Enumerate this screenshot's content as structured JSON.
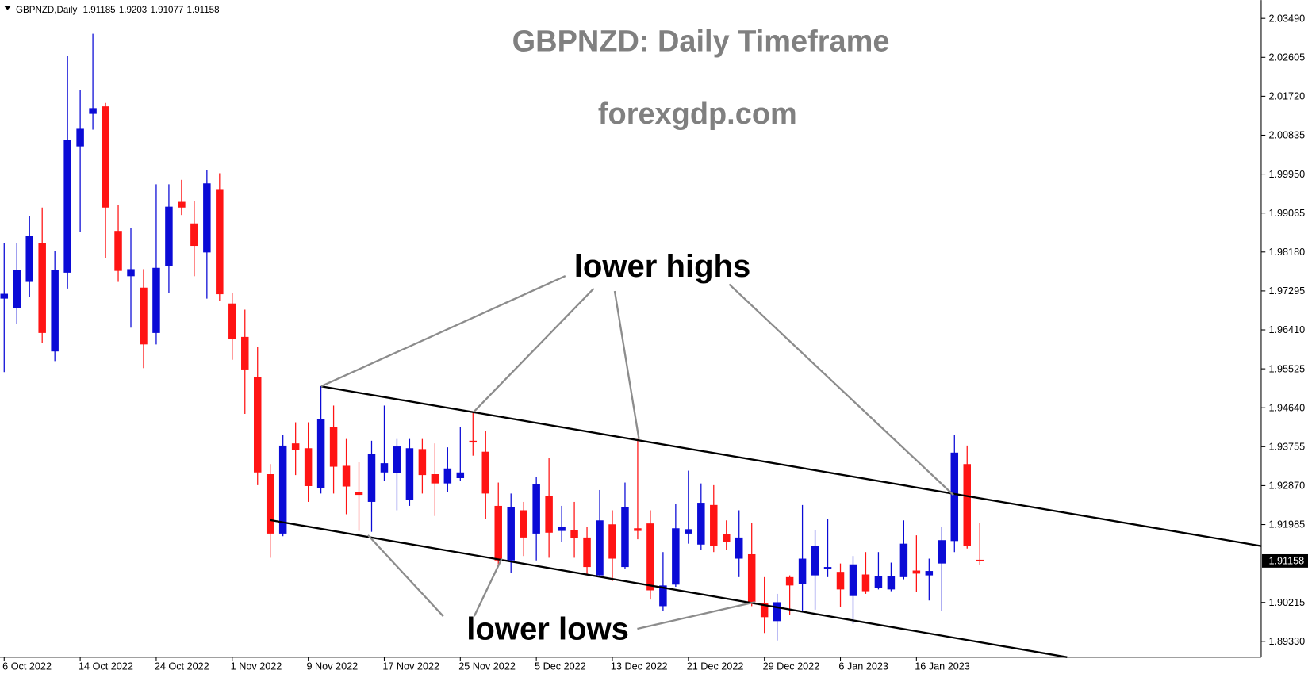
{
  "chart_data": {
    "type": "candlestick",
    "symbol": "GBPNZD,Daily",
    "title": "GBPNZD: Daily Timeframe",
    "subtitle": "forexgdp.com",
    "annotations": [
      "lower highs",
      "lower lows"
    ],
    "categories": [
      "6 Oct 2022",
      null,
      null,
      null,
      null,
      null,
      "14 Oct 2022",
      null,
      null,
      null,
      null,
      null,
      "24 Oct 2022",
      null,
      null,
      null,
      null,
      null,
      "1 Nov 2022",
      null,
      null,
      null,
      null,
      null,
      "9 Nov 2022",
      null,
      null,
      null,
      null,
      null,
      "17 Nov 2022",
      null,
      null,
      null,
      null,
      null,
      "25 Nov 2022",
      null,
      null,
      null,
      null,
      null,
      "5 Dec 2022",
      null,
      null,
      null,
      null,
      null,
      "13 Dec 2022",
      null,
      null,
      null,
      null,
      null,
      "21 Dec 2022",
      null,
      null,
      null,
      null,
      null,
      "29 Dec 2022",
      null,
      null,
      null,
      null,
      null,
      "6 Jan 2023",
      null,
      null,
      null,
      null,
      null,
      "16 Jan 2023",
      null,
      null,
      null,
      null,
      null
    ],
    "open": [
      1.9712,
      1.9691,
      1.975,
      1.9839,
      1.9592,
      1.9771,
      2.0058,
      2.0132,
      2.0149,
      1.9866,
      1.9763,
      1.9737,
      1.9634,
      1.9786,
      1.9932,
      1.9883,
      1.9817,
      1.9961,
      1.9701,
      1.9625,
      1.9533,
      1.9313,
      1.9178,
      1.9383,
      1.9372,
      1.9281,
      1.9421,
      1.9332,
      1.9273,
      1.925,
      1.9317,
      1.9315,
      1.9254,
      1.937,
      1.9313,
      1.9292,
      1.9304,
      1.9389,
      1.9364,
      1.9241,
      1.9117,
      1.9231,
      1.9178,
      1.9264,
      1.9184,
      1.9186,
      1.9169,
      1.9083,
      1.9199,
      1.9102,
      1.919,
      1.9201,
      1.9013,
      1.9062,
      1.9178,
      1.9153,
      1.9243,
      1.9176,
      1.9121,
      1.9131,
      1.902,
      1.8979,
      1.9079,
      1.9064,
      1.9083,
      1.9098,
      1.9091,
      1.9036,
      1.9085,
      1.9055,
      1.9051,
      1.9079,
      1.9094,
      1.9083,
      1.911,
      1.9161,
      1.9336,
      1.91185
    ],
    "high": [
      1.9839,
      1.9839,
      1.99,
      1.9919,
      1.982,
      2.0263,
      2.0187,
      2.0314,
      2.0157,
      1.9925,
      1.9872,
      1.9779,
      1.9972,
      1.9972,
      1.9982,
      1.9934,
      2.0005,
      1.9997,
      1.9725,
      1.9687,
      1.9602,
      1.9336,
      1.9402,
      1.9431,
      1.9431,
      1.9513,
      1.9469,
      1.9393,
      1.934,
      1.9389,
      1.9469,
      1.9393,
      1.9393,
      1.9393,
      1.9383,
      1.9374,
      1.9421,
      1.9454,
      1.9412,
      1.9294,
      1.9269,
      1.925,
      1.9307,
      1.9349,
      1.9241,
      1.925,
      1.9193,
      1.9277,
      1.9231,
      1.9294,
      1.9393,
      1.9231,
      1.9136,
      1.9245,
      1.9321,
      1.9292,
      1.9288,
      1.9208,
      1.9231,
      1.9203,
      1.9079,
      1.9041,
      1.9083,
      1.9243,
      1.9186,
      1.9212,
      1.911,
      1.9127,
      1.9136,
      1.9136,
      1.9112,
      1.9208,
      1.9174,
      1.9121,
      1.9193,
      1.9402,
      1.9378,
      1.9203
    ],
    "low": [
      1.9545,
      1.9655,
      1.9716,
      1.9611,
      1.957,
      1.9735,
      1.9864,
      2.0096,
      1.9805,
      1.975,
      1.9646,
      1.9554,
      1.9608,
      1.9725,
      1.9902,
      1.9763,
      1.9712,
      1.9706,
      1.9573,
      1.945,
      1.9288,
      1.9123,
      1.9172,
      1.9311,
      1.925,
      1.9269,
      1.9269,
      1.9222,
      1.9184,
      1.9182,
      1.9298,
      1.9231,
      1.9241,
      1.9269,
      1.9218,
      1.9273,
      1.9298,
      1.9355,
      1.9212,
      1.9108,
      1.9089,
      1.9127,
      1.9117,
      1.9123,
      1.9159,
      1.9123,
      1.9083,
      1.9079,
      1.907,
      1.9098,
      1.9165,
      1.9028,
      1.9003,
      1.9057,
      1.9155,
      1.914,
      1.9136,
      1.914,
      1.9079,
      1.9013,
      1.8952,
      1.8935,
      1.8994,
      1.9003,
      1.9005,
      1.9079,
      1.9011,
      1.8973,
      1.9041,
      1.9051,
      1.9047,
      1.9074,
      1.9045,
      1.9026,
      1.9003,
      1.9136,
      1.9144,
      1.91077
    ],
    "close": [
      1.9723,
      1.9777,
      1.9855,
      1.9634,
      1.9777,
      2.0073,
      2.0098,
      2.0145,
      1.9919,
      1.9775,
      1.9779,
      1.9608,
      1.9782,
      1.9921,
      1.9919,
      1.9832,
      1.9974,
      1.9722,
      1.9621,
      1.9551,
      1.9317,
      1.9178,
      1.9378,
      1.9368,
      1.9286,
      1.9438,
      1.933,
      1.9285,
      1.9266,
      1.9359,
      1.9338,
      1.9376,
      1.9372,
      1.9311,
      1.9292,
      1.9326,
      1.9317,
      1.9385,
      1.9269,
      1.9117,
      1.9239,
      1.9169,
      1.929,
      1.918,
      1.9193,
      1.9167,
      1.9102,
      1.9208,
      1.9121,
      1.9239,
      1.9184,
      1.9049,
      1.906,
      1.919,
      1.9188,
      1.9248,
      1.915,
      1.9159,
      1.9169,
      1.9022,
      1.8988,
      1.9022,
      1.906,
      1.9121,
      1.915,
      1.9102,
      1.9051,
      1.9108,
      1.9047,
      1.9081,
      1.9081,
      1.9155,
      1.9087,
      1.9093,
      1.9163,
      1.9362,
      1.915,
      1.91158
    ],
    "ylim": [
      1.8897,
      2.0383
    ],
    "yticks": [
      {
        "value": 2.0349,
        "label": "2.03490"
      },
      2.02605,
      {
        "value": 2.0172,
        "label": "2.01720"
      },
      2.00835,
      {
        "value": 1.9995,
        "label": "1.99950"
      },
      1.99065,
      {
        "value": 1.9818,
        "label": "1.98180"
      },
      1.97295,
      {
        "value": 1.9641,
        "label": "1.96410"
      },
      1.95525,
      {
        "value": 1.9464,
        "label": "1.94640"
      },
      1.93755,
      {
        "value": 1.9287,
        "label": "1.92870"
      },
      1.91985,
      1.90215,
      {
        "value": 1.8933,
        "label": "1.89330"
      }
    ],
    "up_color": "#0b0bd6",
    "down_color": "#ff1414"
  }
}
